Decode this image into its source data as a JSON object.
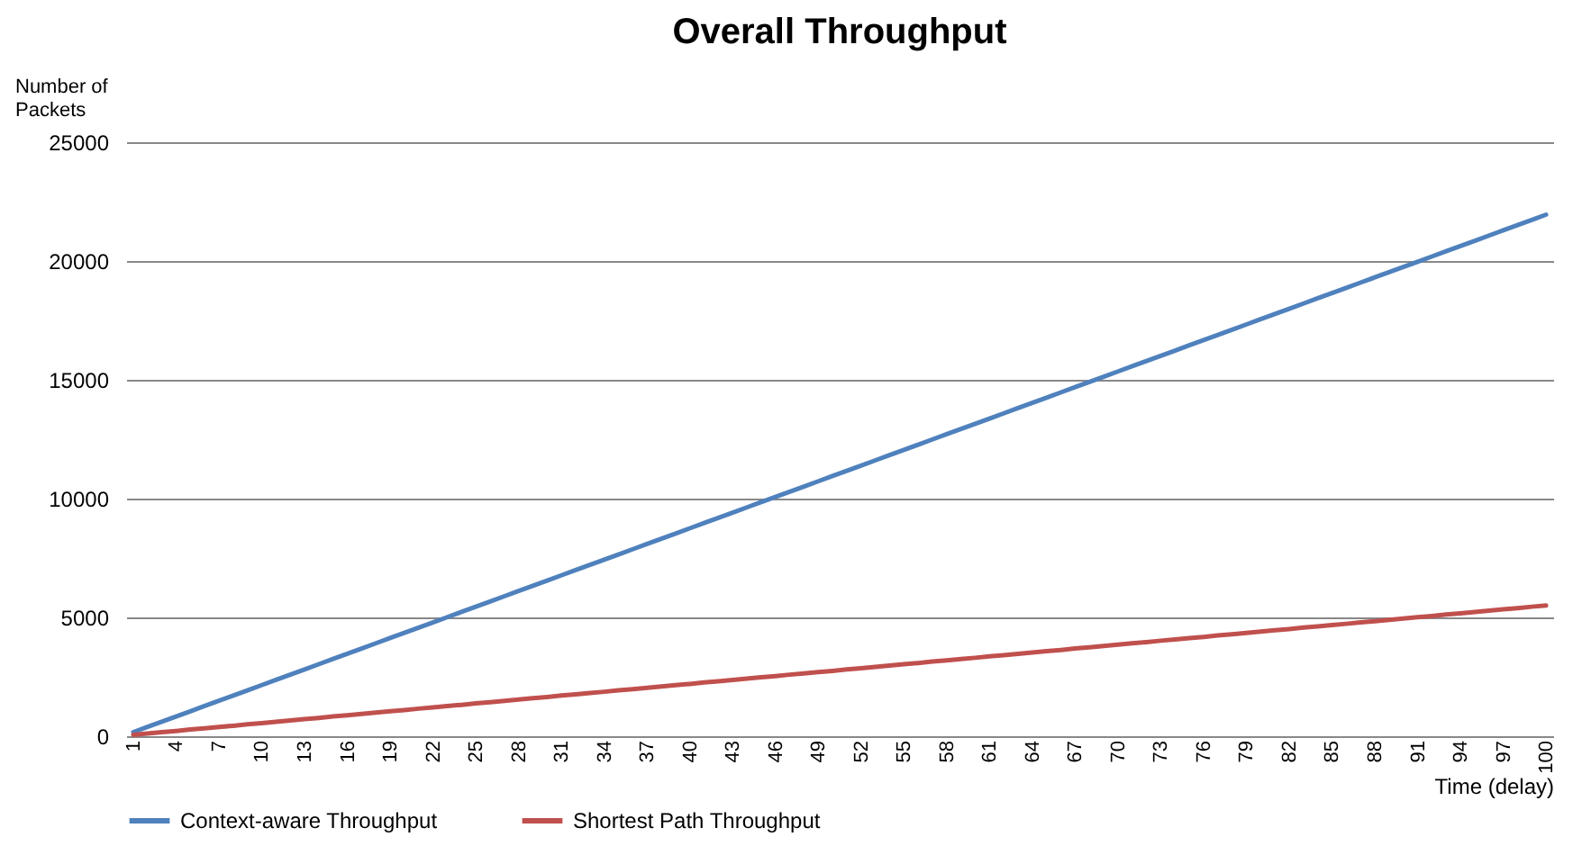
{
  "chart_data": {
    "type": "line",
    "title": "Overall Throughput",
    "ylabel": "Number of Packets",
    "xlabel": "Time (delay)",
    "categories": [
      "1",
      null,
      null,
      "4",
      null,
      null,
      "7",
      null,
      null,
      "10",
      null,
      null,
      "13",
      null,
      null,
      "16",
      null,
      null,
      "19",
      null,
      null,
      "22",
      null,
      null,
      "25",
      null,
      null,
      "28",
      null,
      null,
      "31",
      null,
      null,
      "34",
      null,
      null,
      "37",
      null,
      null,
      "40",
      null,
      null,
      "43",
      null,
      null,
      "46",
      null,
      null,
      "49",
      null,
      null,
      "52",
      null,
      null,
      "55",
      null,
      null,
      "58",
      null,
      null,
      "61",
      null,
      null,
      "64",
      null,
      null,
      "67",
      null,
      null,
      "70",
      null,
      null,
      "73",
      null,
      null,
      "76",
      null,
      null,
      "79",
      null,
      null,
      "82",
      null,
      null,
      "85",
      null,
      null,
      "88",
      null,
      null,
      "91",
      null,
      null,
      "94",
      null,
      null,
      "97",
      null,
      null,
      "100"
    ],
    "series": [
      {
        "name": "Context-aware Throughput",
        "color": "#4f81bd",
        "values": [
          170,
          390,
          610,
          830,
          1050,
          1270,
          1490,
          1710,
          1930,
          2150,
          2370,
          2590,
          2810,
          3030,
          3250,
          3470,
          3690,
          3910,
          4130,
          4350,
          4570,
          4790,
          5010,
          5230,
          5450,
          5670,
          5890,
          6110,
          6330,
          6550,
          6770,
          6990,
          7210,
          7430,
          7650,
          7870,
          8090,
          8310,
          8530,
          8750,
          8970,
          9190,
          9410,
          9630,
          9850,
          10070,
          10290,
          10510,
          10730,
          10950,
          11170,
          11390,
          11610,
          11830,
          12050,
          12270,
          12490,
          12710,
          12930,
          13150,
          13370,
          13590,
          13810,
          14030,
          14250,
          14470,
          14690,
          14910,
          15130,
          15350,
          15570,
          15790,
          16010,
          16230,
          16450,
          16670,
          16890,
          17110,
          17330,
          17550,
          17770,
          17990,
          18210,
          18430,
          18650,
          18870,
          19090,
          19310,
          19530,
          19750,
          19970,
          20190,
          20410,
          20630,
          20850,
          21070,
          21290,
          21510,
          21730,
          21950
        ]
      },
      {
        "name": "Shortest Path Throughput",
        "color": "#c0504d",
        "values": [
          60,
          110,
          170,
          220,
          280,
          330,
          390,
          440,
          500,
          550,
          610,
          660,
          720,
          770,
          830,
          880,
          940,
          990,
          1050,
          1100,
          1160,
          1210,
          1270,
          1320,
          1380,
          1430,
          1490,
          1540,
          1600,
          1650,
          1710,
          1760,
          1820,
          1870,
          1930,
          1980,
          2040,
          2090,
          2150,
          2200,
          2260,
          2310,
          2370,
          2420,
          2480,
          2530,
          2590,
          2640,
          2700,
          2750,
          2810,
          2860,
          2920,
          2970,
          3030,
          3080,
          3140,
          3190,
          3250,
          3300,
          3360,
          3410,
          3470,
          3520,
          3580,
          3630,
          3690,
          3740,
          3800,
          3850,
          3910,
          3960,
          4020,
          4070,
          4130,
          4180,
          4240,
          4290,
          4350,
          4400,
          4460,
          4510,
          4570,
          4620,
          4680,
          4730,
          4790,
          4840,
          4900,
          4950,
          5010,
          5060,
          5120,
          5170,
          5230,
          5280,
          5340,
          5390,
          5450,
          5500
        ]
      }
    ],
    "ylim": [
      0,
      25000
    ],
    "yticks": [
      0,
      5000,
      10000,
      15000,
      20000,
      25000
    ],
    "grid": "y",
    "legend": "bottom",
    "marker": "none",
    "line_style": "solid"
  }
}
